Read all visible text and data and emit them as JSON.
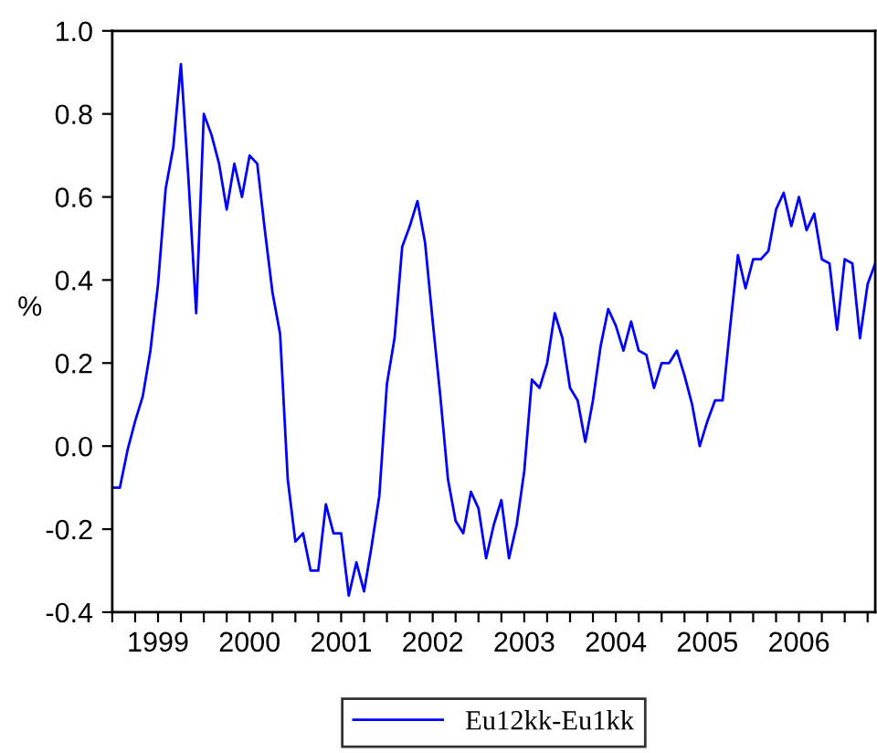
{
  "chart_data": {
    "type": "line",
    "ylabel": "%",
    "x": [
      "1999-01",
      "1999-02",
      "1999-03",
      "1999-04",
      "1999-05",
      "1999-06",
      "1999-07",
      "1999-08",
      "1999-09",
      "1999-10",
      "1999-11",
      "1999-12",
      "2000-01",
      "2000-02",
      "2000-03",
      "2000-04",
      "2000-05",
      "2000-06",
      "2000-07",
      "2000-08",
      "2000-09",
      "2000-10",
      "2000-11",
      "2000-12",
      "2001-01",
      "2001-02",
      "2001-03",
      "2001-04",
      "2001-05",
      "2001-06",
      "2001-07",
      "2001-08",
      "2001-09",
      "2001-10",
      "2001-11",
      "2001-12",
      "2002-01",
      "2002-02",
      "2002-03",
      "2002-04",
      "2002-05",
      "2002-06",
      "2002-07",
      "2002-08",
      "2002-09",
      "2002-10",
      "2002-11",
      "2002-12",
      "2003-01",
      "2003-02",
      "2003-03",
      "2003-04",
      "2003-05",
      "2003-06",
      "2003-07",
      "2003-08",
      "2003-09",
      "2003-10",
      "2003-11",
      "2003-12",
      "2004-01",
      "2004-02",
      "2004-03",
      "2004-04",
      "2004-05",
      "2004-06",
      "2004-07",
      "2004-08",
      "2004-09",
      "2004-10",
      "2004-11",
      "2004-12",
      "2005-01",
      "2005-02",
      "2005-03",
      "2005-04",
      "2005-05",
      "2005-06",
      "2005-07",
      "2005-08",
      "2005-09",
      "2005-10",
      "2005-11",
      "2005-12",
      "2006-01",
      "2006-02",
      "2006-03",
      "2006-04",
      "2006-05",
      "2006-06",
      "2006-07",
      "2006-08",
      "2006-09",
      "2006-10",
      "2006-11",
      "2006-12",
      "2007-01",
      "2007-02",
      "2007-03",
      "2007-04",
      "2007-05"
    ],
    "xlim": [
      "1999-01",
      "2007-05"
    ],
    "ylim": [
      -0.4,
      1.0
    ],
    "yticks": [
      -0.4,
      -0.2,
      {
        "value": 0.0,
        "label": "0.0"
      },
      0.2,
      0.4,
      0.6,
      0.8,
      {
        "value": 1.0,
        "label": "1.0"
      }
    ],
    "xticks": [
      {
        "value": "1999-01",
        "label": null
      },
      {
        "value": "1999-04",
        "label": null
      },
      {
        "value": "1999-07",
        "label": "1999"
      },
      {
        "value": "1999-10",
        "label": null
      },
      {
        "value": "2000-01",
        "label": null
      },
      {
        "value": "2000-04",
        "label": null
      },
      {
        "value": "2000-07",
        "label": "2000"
      },
      {
        "value": "2000-10",
        "label": null
      },
      {
        "value": "2001-01",
        "label": null
      },
      {
        "value": "2001-04",
        "label": null
      },
      {
        "value": "2001-07",
        "label": "2001"
      },
      {
        "value": "2001-10",
        "label": null
      },
      {
        "value": "2002-01",
        "label": null
      },
      {
        "value": "2002-04",
        "label": null
      },
      {
        "value": "2002-07",
        "label": "2002"
      },
      {
        "value": "2002-10",
        "label": null
      },
      {
        "value": "2003-01",
        "label": null
      },
      {
        "value": "2003-04",
        "label": null
      },
      {
        "value": "2003-07",
        "label": "2003"
      },
      {
        "value": "2003-10",
        "label": null
      },
      {
        "value": "2004-01",
        "label": null
      },
      {
        "value": "2004-04",
        "label": null
      },
      {
        "value": "2004-07",
        "label": "2004"
      },
      {
        "value": "2004-10",
        "label": null
      },
      {
        "value": "2005-01",
        "label": null
      },
      {
        "value": "2005-04",
        "label": null
      },
      {
        "value": "2005-07",
        "label": "2005"
      },
      {
        "value": "2005-10",
        "label": null
      },
      {
        "value": "2006-01",
        "label": null
      },
      {
        "value": "2006-04",
        "label": null
      },
      {
        "value": "2006-07",
        "label": "2006"
      },
      {
        "value": "2006-10",
        "label": null
      },
      {
        "value": "2007-01",
        "label": null
      },
      {
        "value": "2007-04",
        "label": null
      }
    ],
    "grid": false,
    "legend": "bottom",
    "marker": "none",
    "line_style": "solid",
    "series": [
      {
        "name": "Eu12kk-Eu1kk",
        "color": "#0000ff",
        "values": [
          -0.1,
          -0.1,
          -0.01,
          0.06,
          0.12,
          0.23,
          0.39,
          0.62,
          0.72,
          0.92,
          0.64,
          0.32,
          0.8,
          0.75,
          0.68,
          0.57,
          0.68,
          0.6,
          0.7,
          0.68,
          0.52,
          0.37,
          0.27,
          -0.08,
          -0.23,
          -0.21,
          -0.3,
          -0.3,
          -0.14,
          -0.21,
          -0.21,
          -0.36,
          -0.28,
          -0.35,
          -0.24,
          -0.12,
          0.15,
          0.26,
          0.48,
          0.53,
          0.59,
          0.49,
          0.3,
          0.12,
          -0.08,
          -0.18,
          -0.21,
          -0.11,
          -0.15,
          -0.27,
          -0.19,
          -0.13,
          -0.27,
          -0.19,
          -0.06,
          0.16,
          0.14,
          0.2,
          0.32,
          0.26,
          0.14,
          0.11,
          0.01,
          0.11,
          0.24,
          0.33,
          0.29,
          0.23,
          0.3,
          0.23,
          0.22,
          0.14,
          0.2,
          0.2,
          0.23,
          0.17,
          0.1,
          0.0,
          0.06,
          0.11,
          0.11,
          0.29,
          0.46,
          0.38,
          0.45,
          0.45,
          0.47,
          0.57,
          0.61,
          0.53,
          0.6,
          0.52,
          0.56,
          0.45,
          0.44,
          0.28,
          0.45,
          0.44,
          0.26,
          0.39,
          0.44
        ]
      }
    ]
  }
}
